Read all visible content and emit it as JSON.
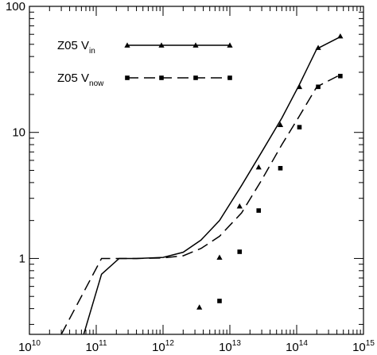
{
  "chart_data": {
    "type": "line",
    "title": "",
    "xlabel": "",
    "ylabel": "",
    "xscale": "log",
    "yscale": "log",
    "xlim": [
      10000000000.0,
      1000000000000000.0
    ],
    "ylim": [
      0.25,
      100
    ],
    "grid": false,
    "legend_position": "top-left",
    "x_tick_labels": [
      {
        "base": "10",
        "exp": "10",
        "value": 10000000000.0
      },
      {
        "base": "10",
        "exp": "11",
        "value": 100000000000.0
      },
      {
        "base": "10",
        "exp": "12",
        "value": 1000000000000.0
      },
      {
        "base": "10",
        "exp": "13",
        "value": 10000000000000.0
      },
      {
        "base": "10",
        "exp": "14",
        "value": 100000000000000.0
      },
      {
        "base": "10",
        "exp": "15",
        "value": 1000000000000000.0
      }
    ],
    "y_tick_labels": [
      {
        "text": "1",
        "value": 1
      },
      {
        "text": "10",
        "value": 10
      },
      {
        "text": "100",
        "value": 100
      }
    ],
    "series": [
      {
        "name": "Z05 V_in",
        "legend_main": "Z05 V",
        "legend_sub": "in",
        "line_style": "solid",
        "marker": "triangle",
        "line": {
          "x": [
            65000000000.0,
            120000000000.0,
            220000000000.0,
            400000000000.0,
            1000000000000.0,
            2000000000000.0,
            3700000000000.0,
            7000000000000.0,
            15000000000000.0,
            30000000000000.0,
            60000000000000.0,
            110000000000000.0,
            200000000000000.0,
            470000000000000.0
          ],
          "y": [
            0.25,
            0.75,
            1.0,
            1.0,
            1.02,
            1.12,
            1.4,
            2.0,
            3.8,
            7.0,
            13.0,
            24.0,
            46.0,
            58.0
          ]
        },
        "points": {
          "x": [
            3500000000000.0,
            7000000000000.0,
            14000000000000.0,
            27000000000000.0,
            57000000000000.0,
            110000000000000.0,
            210000000000000.0,
            450000000000000.0
          ],
          "y": [
            0.41,
            1.02,
            2.6,
            5.3,
            11.5,
            23.0,
            47.0,
            58.0
          ]
        }
      },
      {
        "name": "Z05 V_now",
        "legend_main": "Z05 V",
        "legend_sub": "now",
        "line_style": "dashed",
        "marker": "square",
        "line": {
          "x": [
            30000000000.0,
            120000000000.0,
            220000000000.0,
            400000000000.0,
            1000000000000.0,
            2000000000000.0,
            3700000000000.0,
            7000000000000.0,
            15000000000000.0,
            30000000000000.0,
            60000000000000.0,
            110000000000000.0,
            200000000000000.0,
            470000000000000.0
          ],
          "y": [
            0.25,
            1.0,
            1.0,
            1.0,
            1.01,
            1.05,
            1.2,
            1.5,
            2.3,
            4.2,
            8.0,
            13.5,
            23.0,
            29.0
          ]
        },
        "points": {
          "x": [
            7000000000000.0,
            14000000000000.0,
            27000000000000.0,
            57000000000000.0,
            110000000000000.0,
            210000000000000.0,
            450000000000000.0
          ],
          "y": [
            0.46,
            1.13,
            2.4,
            5.2,
            11.0,
            23.0,
            28.0
          ]
        }
      }
    ]
  }
}
